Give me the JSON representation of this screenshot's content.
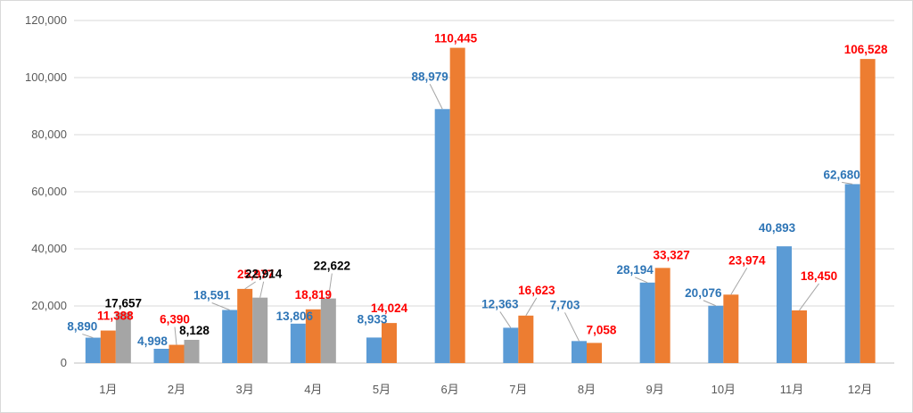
{
  "chart_data": {
    "type": "bar",
    "title": "",
    "xlabel": "",
    "ylabel": "",
    "categories": [
      "1月",
      "2月",
      "3月",
      "4月",
      "5月",
      "6月",
      "7月",
      "8月",
      "9月",
      "10月",
      "11月",
      "12月"
    ],
    "y_ticks": [
      "0",
      "20,000",
      "40,000",
      "60,000",
      "80,000",
      "100,000",
      "120,000"
    ],
    "ylim": [
      0,
      120000
    ],
    "grid": true,
    "legend": "none",
    "series": [
      {
        "color": "#5b9bd5",
        "label_color": "#2e75b6",
        "values": [
          8890,
          4998,
          18591,
          13806,
          8933,
          88979,
          12363,
          7703,
          28194,
          20076,
          40893,
          62680
        ],
        "labels": [
          "8,890",
          "4,998",
          "18,591",
          "13,806",
          "8,933",
          "88,979",
          "12,363",
          "7,703",
          "28,194",
          "20,076",
          "40,893",
          "62,680"
        ]
      },
      {
        "color": "#ed7d31",
        "label_color": "#ff0000",
        "values": [
          11388,
          6390,
          25977,
          18819,
          14024,
          110445,
          16623,
          7058,
          33327,
          23974,
          18450,
          106528
        ],
        "labels": [
          "11,388",
          "6,390",
          "25,977",
          "18,819",
          "14,024",
          "110,445",
          "16,623",
          "7,058",
          "33,327",
          "23,974",
          "18,450",
          "106,528"
        ]
      },
      {
        "color": "#a5a5a5",
        "label_color": "#000000",
        "values": [
          17657,
          8128,
          22914,
          22622,
          null,
          null,
          null,
          null,
          null,
          null,
          null,
          null
        ],
        "labels": [
          "17,657",
          "8,128",
          "22,914",
          "22,622",
          "",
          "",
          "",
          "",
          "",
          "",
          "",
          ""
        ]
      }
    ]
  }
}
